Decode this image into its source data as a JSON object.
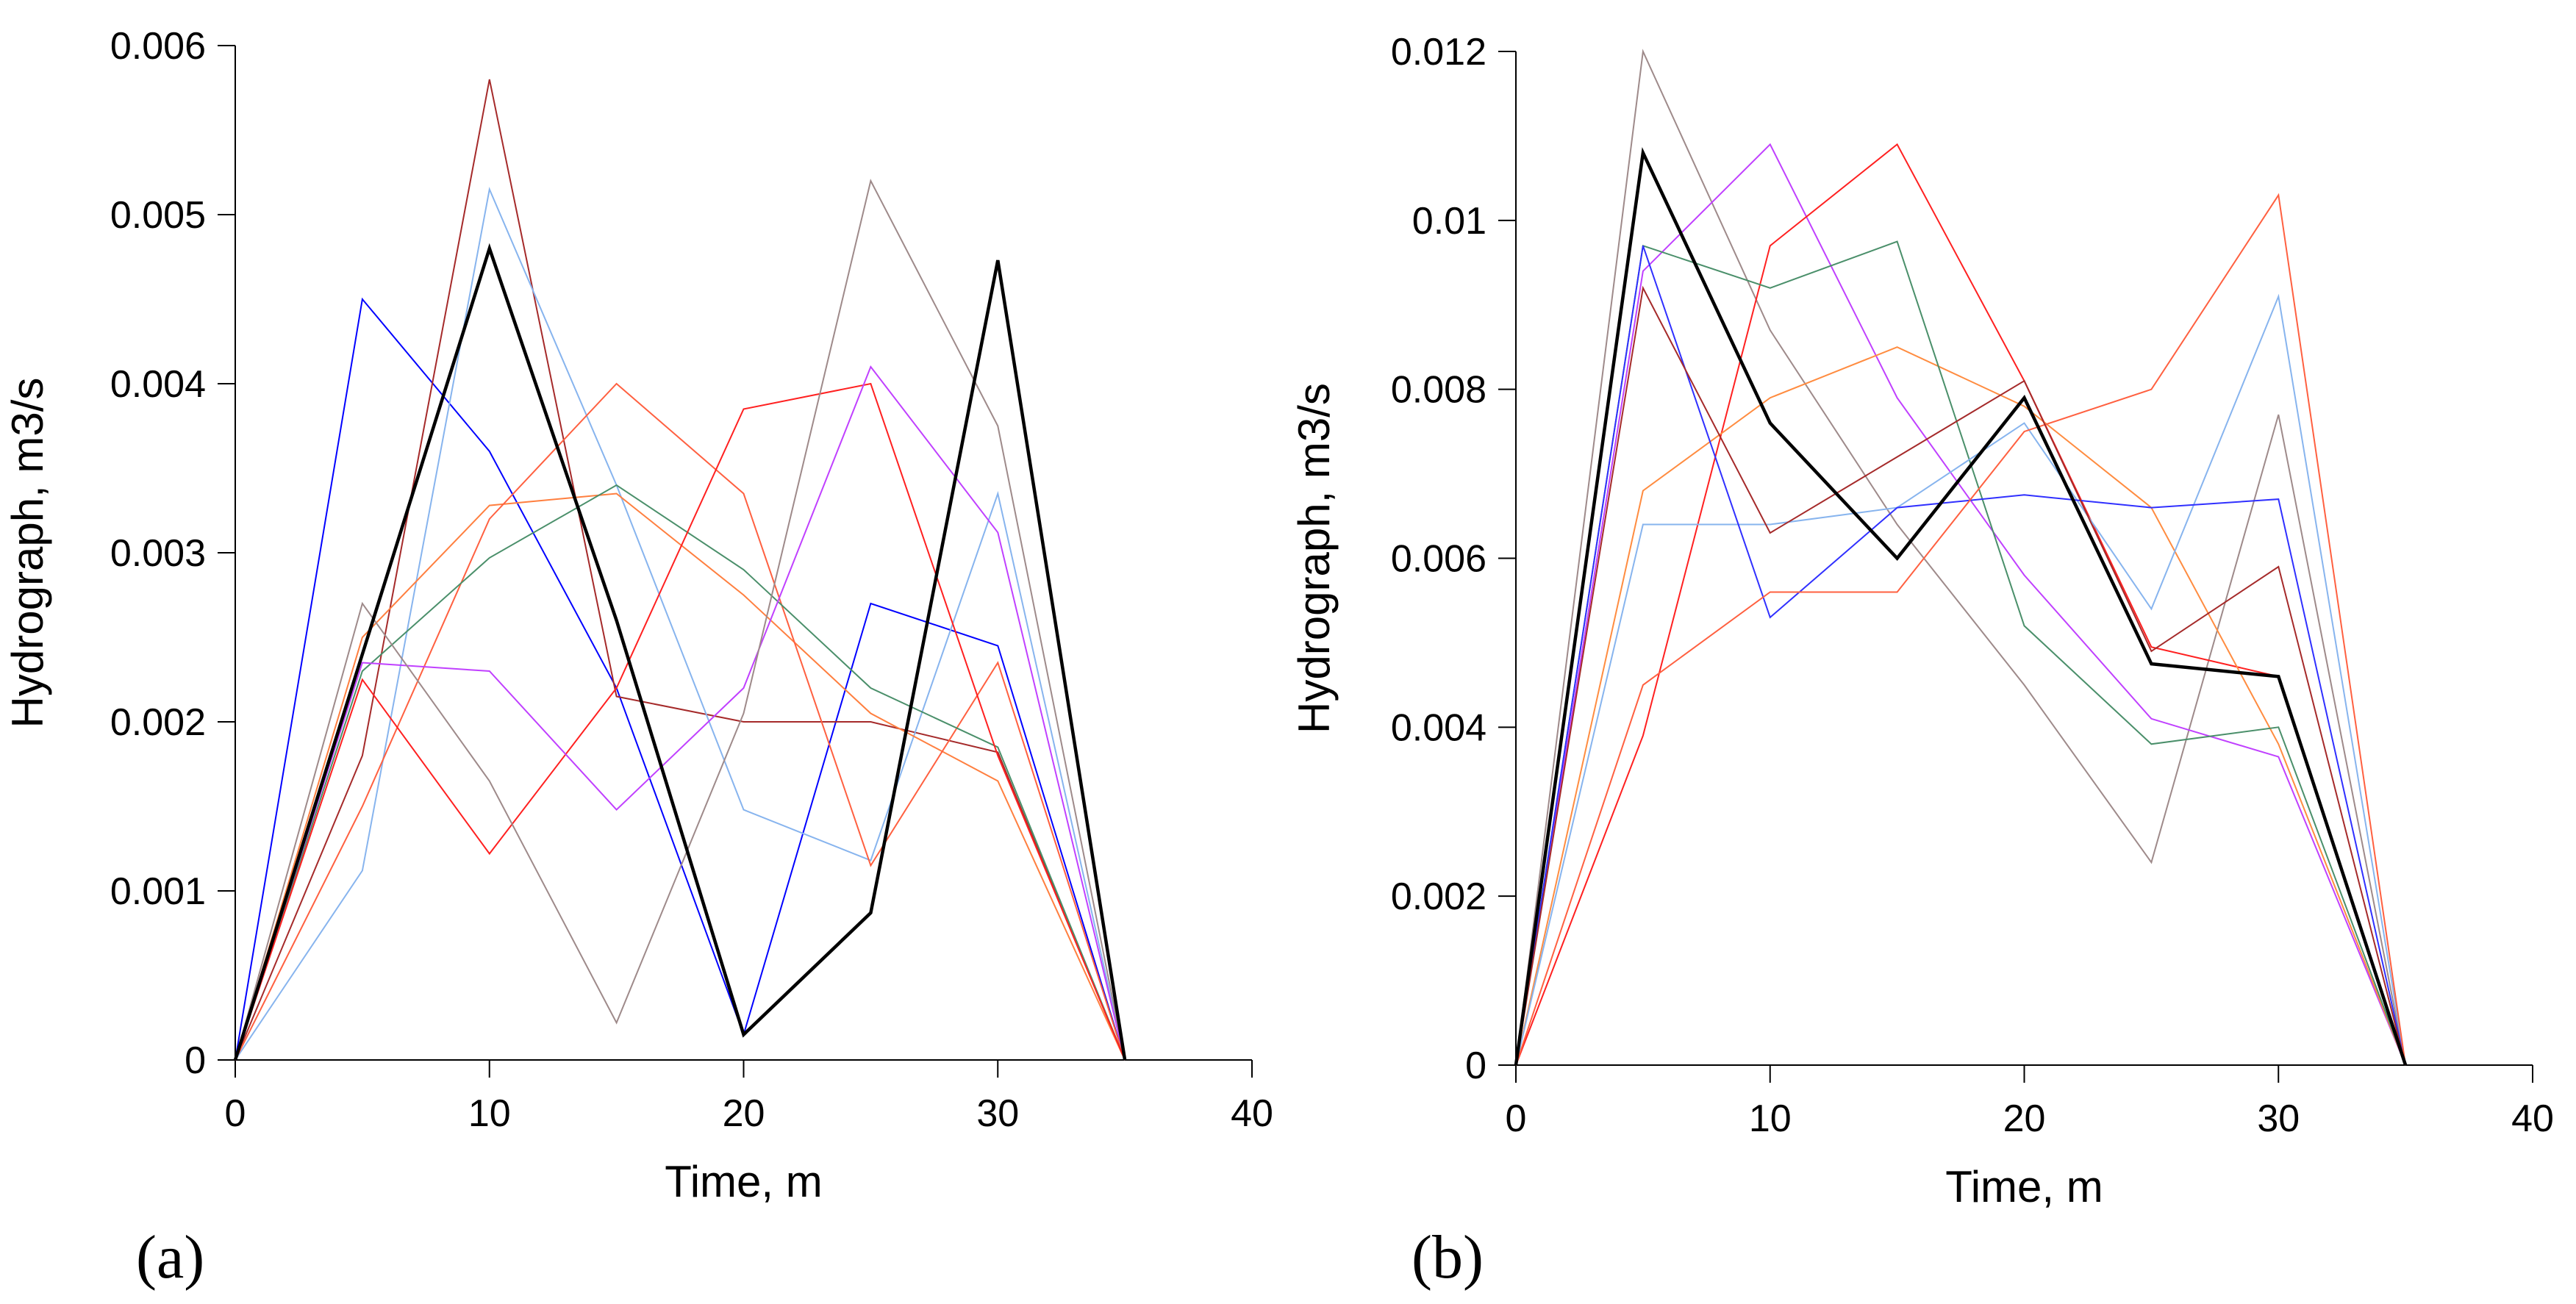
{
  "chart_data": [
    {
      "type": "line",
      "panel_label": "(a)",
      "xlabel": "Time, m",
      "ylabel": "Hydrograph, m3/s",
      "xlim": [
        0,
        40
      ],
      "ylim": [
        0,
        0.006
      ],
      "xticks": [
        0,
        10,
        20,
        30,
        40
      ],
      "yticks": [
        0,
        0.001,
        0.002,
        0.003,
        0.004,
        0.005,
        0.006
      ],
      "xtick_labels": [
        "0",
        "10",
        "20",
        "30",
        "40"
      ],
      "ytick_labels": [
        "0",
        "0.001",
        "0.002",
        "0.003",
        "0.004",
        "0.005",
        "0.006"
      ],
      "x": [
        0,
        5,
        10,
        15,
        20,
        25,
        30,
        35
      ],
      "series": [
        {
          "name": "blue",
          "color": "#0000ff",
          "values": [
            0,
            0.0045,
            0.0036,
            0.0022,
            0.00015,
            0.0027,
            0.00245,
            0
          ]
        },
        {
          "name": "dark-red",
          "color": "#a52a2a",
          "values": [
            0,
            0.0018,
            0.0058,
            0.00215,
            0.002,
            0.002,
            0.00182,
            0
          ]
        },
        {
          "name": "light-blue",
          "color": "#87b4ee",
          "values": [
            0,
            0.00112,
            0.00515,
            0.0034,
            0.00148,
            0.00118,
            0.00335,
            0
          ]
        },
        {
          "name": "orange",
          "color": "#ff7f3f",
          "values": [
            0,
            0.0025,
            0.00328,
            0.00335,
            0.00275,
            0.00205,
            0.00165,
            0
          ]
        },
        {
          "name": "coral",
          "color": "#ff6040",
          "values": [
            0,
            0.0015,
            0.0032,
            0.004,
            0.00335,
            0.00115,
            0.00235,
            0
          ]
        },
        {
          "name": "green",
          "color": "#4a8f6a",
          "values": [
            0,
            0.0023,
            0.00297,
            0.0034,
            0.0029,
            0.0022,
            0.00185,
            0
          ]
        },
        {
          "name": "red",
          "color": "#ff2020",
          "values": [
            0,
            0.00225,
            0.00122,
            0.0022,
            0.00385,
            0.004,
            0.0018,
            0
          ]
        },
        {
          "name": "magenta",
          "color": "#c040ff",
          "values": [
            0,
            0.00235,
            0.0023,
            0.00148,
            0.0022,
            0.0041,
            0.00312,
            0
          ]
        },
        {
          "name": "gray",
          "color": "#9e8a8a",
          "values": [
            0,
            0.0027,
            0.00165,
            0.00022,
            0.00205,
            0.0052,
            0.00375,
            0
          ]
        },
        {
          "name": "black",
          "color": "#000000",
          "bold": true,
          "values": [
            0,
            0.0024,
            0.0048,
            0.0026,
            0.00015,
            0.00087,
            0.00473,
            0
          ]
        }
      ]
    },
    {
      "type": "line",
      "panel_label": "(b)",
      "xlabel": "Time, m",
      "ylabel": "Hydrograph, m3/s",
      "xlim": [
        0,
        40
      ],
      "ylim": [
        0,
        0.012
      ],
      "xticks": [
        0,
        10,
        20,
        30,
        40
      ],
      "yticks": [
        0,
        0.002,
        0.004,
        0.006,
        0.008,
        0.01,
        0.012
      ],
      "xtick_labels": [
        "0",
        "10",
        "20",
        "30",
        "40"
      ],
      "ytick_labels": [
        "0",
        "0.002",
        "0.004",
        "0.006",
        "0.008",
        "0.01",
        "0.012"
      ],
      "x": [
        0,
        5,
        10,
        15,
        20,
        25,
        30,
        35
      ],
      "series": [
        {
          "name": "gray",
          "color": "#9e8a8a",
          "values": [
            0,
            0.012,
            0.0087,
            0.0064,
            0.0045,
            0.0024,
            0.0077,
            0
          ]
        },
        {
          "name": "magenta",
          "color": "#c040ff",
          "values": [
            0,
            0.0094,
            0.0109,
            0.0079,
            0.0058,
            0.0041,
            0.00365,
            0
          ]
        },
        {
          "name": "red",
          "color": "#ff2020",
          "values": [
            0,
            0.0039,
            0.0097,
            0.0109,
            0.0081,
            0.00495,
            0.0046,
            0
          ]
        },
        {
          "name": "orange",
          "color": "#ff8c40",
          "values": [
            0,
            0.0068,
            0.0079,
            0.0085,
            0.0078,
            0.0066,
            0.0038,
            0
          ]
        },
        {
          "name": "green",
          "color": "#4a8f6a",
          "values": [
            0,
            0.0097,
            0.0092,
            0.00975,
            0.0052,
            0.0038,
            0.004,
            0
          ]
        },
        {
          "name": "light-blue",
          "color": "#87b4ee",
          "values": [
            0,
            0.0064,
            0.0064,
            0.0066,
            0.0076,
            0.0054,
            0.0091,
            0
          ]
        },
        {
          "name": "blue",
          "color": "#3030ff",
          "values": [
            0,
            0.0097,
            0.0053,
            0.0066,
            0.00675,
            0.0066,
            0.0067,
            0
          ]
        },
        {
          "name": "coral",
          "color": "#ff6040",
          "values": [
            0,
            0.0045,
            0.0056,
            0.0056,
            0.0075,
            0.008,
            0.0103,
            0
          ]
        },
        {
          "name": "dark-red",
          "color": "#a52a2a",
          "values": [
            0,
            0.0092,
            0.0063,
            0.0072,
            0.0081,
            0.0049,
            0.0059,
            0
          ]
        },
        {
          "name": "black",
          "color": "#000000",
          "bold": true,
          "values": [
            0,
            0.0108,
            0.0076,
            0.006,
            0.0079,
            0.00475,
            0.0046,
            0
          ]
        }
      ]
    }
  ]
}
